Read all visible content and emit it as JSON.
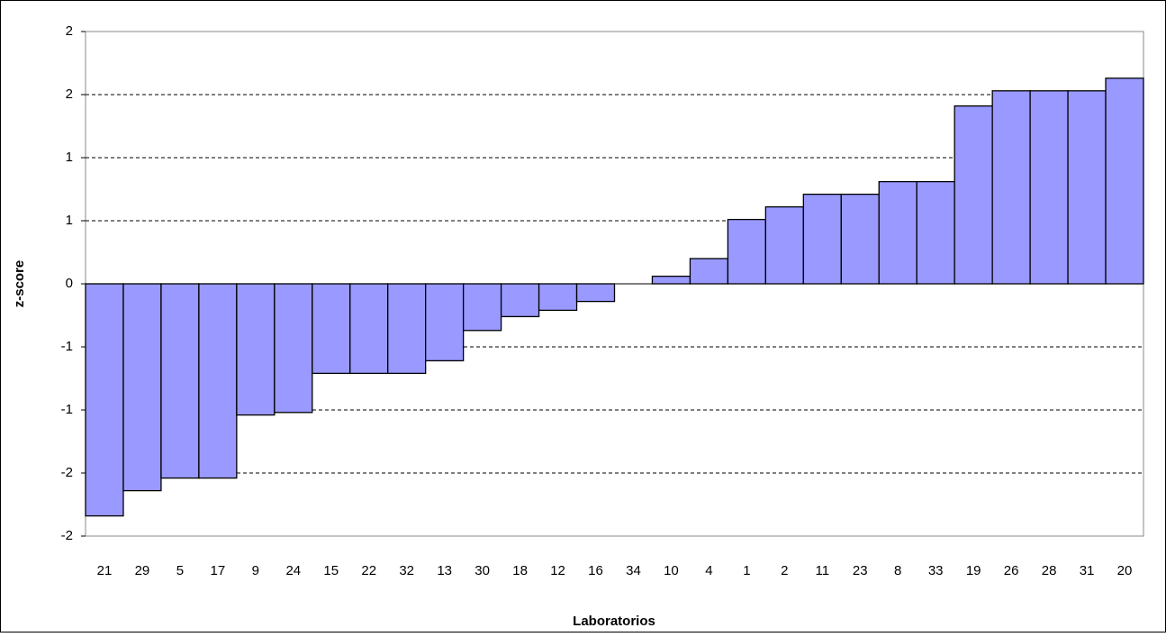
{
  "chart_data": {
    "type": "bar",
    "x_label": "Laboratorios",
    "y_label": "z-score",
    "categories": [
      "21",
      "29",
      "5",
      "17",
      "9",
      "24",
      "15",
      "22",
      "32",
      "13",
      "30",
      "18",
      "12",
      "16",
      "34",
      "10",
      "4",
      "1",
      "2",
      "11",
      "23",
      "8",
      "33",
      "19",
      "26",
      "28",
      "31",
      "20"
    ],
    "values": [
      -1.84,
      -1.64,
      -1.54,
      -1.54,
      -1.04,
      -1.02,
      -0.71,
      -0.71,
      -0.71,
      -0.61,
      -0.37,
      -0.26,
      -0.21,
      -0.14,
      0,
      0.06,
      0.2,
      0.51,
      0.61,
      0.71,
      0.71,
      0.81,
      0.81,
      1.41,
      1.53,
      1.53,
      1.53,
      1.63
    ],
    "color": "#9999ff",
    "ylim": [
      -2,
      2
    ],
    "yticks": [
      {
        "value": -2,
        "label": "-2"
      },
      {
        "value": -1.5,
        "label": "-2"
      },
      {
        "value": -1,
        "label": "-1"
      },
      {
        "value": -0.5,
        "label": "-1"
      },
      0,
      {
        "value": 0.5,
        "label": "1"
      },
      {
        "value": 1,
        "label": "1"
      },
      {
        "value": 1.5,
        "label": "2"
      },
      {
        "value": 2,
        "label": "2"
      }
    ],
    "grid": true
  }
}
